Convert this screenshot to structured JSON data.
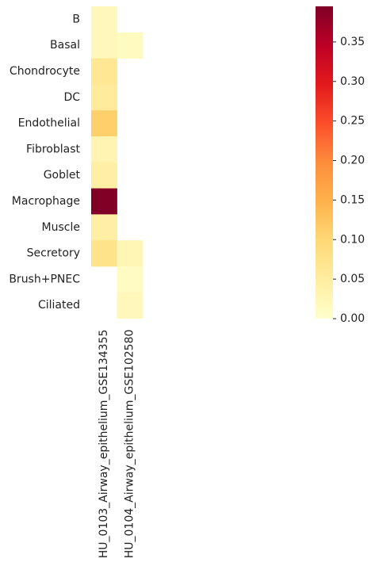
{
  "chart_data": {
    "type": "heatmap",
    "title": "",
    "xlabel": "",
    "ylabel": "",
    "rows": [
      "B",
      "Basal",
      "Chondrocyte",
      "DC",
      "Endothelial",
      "Fibroblast",
      "Goblet",
      "Macrophage",
      "Muscle",
      "Secretory",
      "Brush+PNEC",
      "Ciliated"
    ],
    "columns": [
      "HU_0103_Airway_epithelium_GSE134355",
      "HU_0104_Airway_epithelium_GSE102580"
    ],
    "values": [
      [
        0.02,
        null
      ],
      [
        0.02,
        0.015
      ],
      [
        0.065,
        null
      ],
      [
        0.055,
        null
      ],
      [
        0.11,
        null
      ],
      [
        0.03,
        null
      ],
      [
        0.045,
        null
      ],
      [
        0.395,
        null
      ],
      [
        0.045,
        null
      ],
      [
        0.075,
        0.025
      ],
      [
        null,
        0.01
      ],
      [
        null,
        0.02
      ]
    ],
    "colormap": "YlOrRd",
    "colorbar": {
      "range": [
        0.0,
        0.395
      ],
      "ticks": [
        0.0,
        0.05,
        0.1,
        0.15,
        0.2,
        0.25,
        0.3,
        0.35
      ],
      "tick_labels": [
        "0.00",
        "0.05",
        "0.10",
        "0.15",
        "0.20",
        "0.25",
        "0.30",
        "0.35"
      ],
      "placement": "right"
    }
  }
}
